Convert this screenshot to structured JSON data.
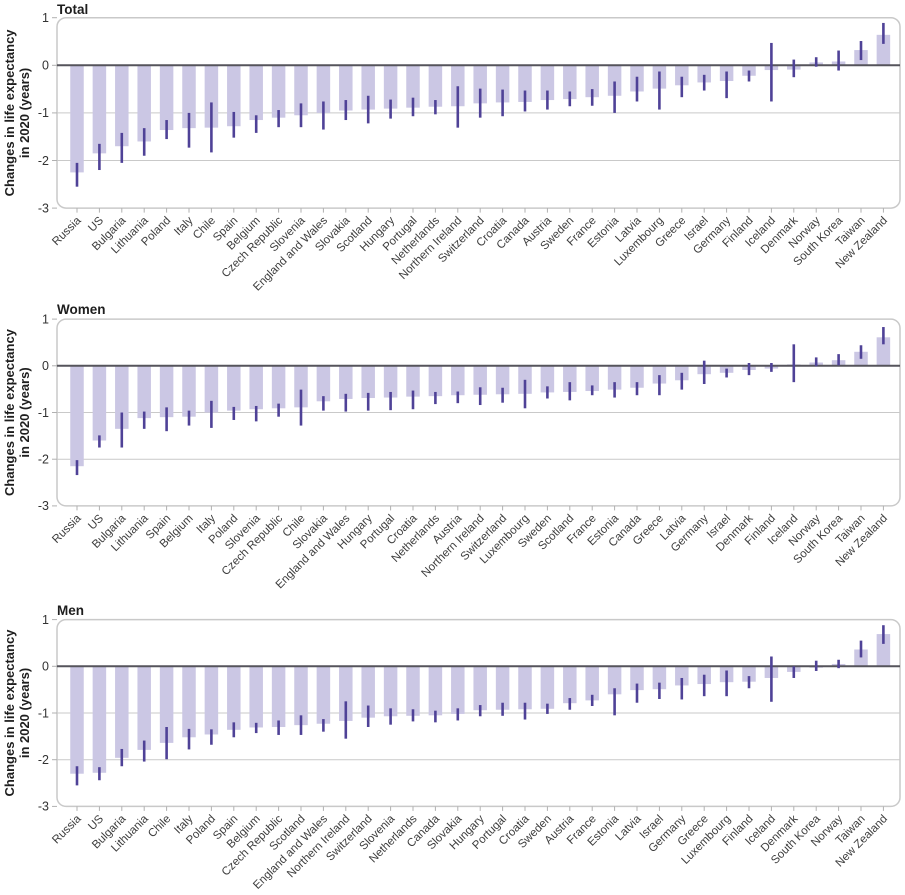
{
  "figure": {
    "y_axis_label_lines": [
      "Changes in life expectancy",
      "in 2020 (years)"
    ]
  },
  "colors": {
    "background": "#ffffff",
    "bar_fill": "#cbc7e4",
    "ci_stroke": "#4f4297",
    "gridline": "#c9c9c9",
    "zero_line": "#55545b",
    "panel_border": "#c9c9c9",
    "tick_mark": "#b0b0b0",
    "title_text": "#1e1e1e",
    "axis_text": "#333333",
    "label_text": "#3d3d3d"
  },
  "chart_data": [
    {
      "id": "total",
      "type": "bar",
      "title": "Total",
      "ylabel": "Changes in life expectancy in 2020 (years)",
      "yticks": [
        1,
        0,
        -1,
        -2,
        -3
      ],
      "ylim": [
        -3,
        1
      ],
      "grid": true,
      "error_bars": true,
      "categories": [
        "Russia",
        "US",
        "Bulgaria",
        "Lithuania",
        "Poland",
        "Italy",
        "Chile",
        "Spain",
        "Belgium",
        "Czech Republic",
        "Slovenia",
        "England and Wales",
        "Slovakia",
        "Scotland",
        "Hungary",
        "Portugal",
        "Netherlands",
        "Northern Ireland",
        "Switzerland",
        "Croatia",
        "Canada",
        "Austria",
        "Sweden",
        "France",
        "Estonia",
        "Latvia",
        "Luxembourg",
        "Greece",
        "Israel",
        "Germany",
        "Finland",
        "Iceland",
        "Denmark",
        "Norway",
        "South Korea",
        "Taiwan",
        "New Zealand"
      ],
      "values": [
        -2.25,
        -1.85,
        -1.7,
        -1.6,
        -1.36,
        -1.32,
        -1.31,
        -1.28,
        -1.15,
        -1.1,
        -1.05,
        -1.0,
        -0.95,
        -0.93,
        -0.91,
        -0.89,
        -0.87,
        -0.86,
        -0.8,
        -0.78,
        -0.77,
        -0.73,
        -0.71,
        -0.67,
        -0.64,
        -0.55,
        -0.49,
        -0.42,
        -0.36,
        -0.33,
        -0.22,
        -0.1,
        -0.09,
        0.06,
        0.08,
        0.32,
        0.64
      ],
      "ci_low": [
        -2.55,
        -2.2,
        -2.05,
        -1.9,
        -1.55,
        -1.73,
        -1.83,
        -1.52,
        -1.42,
        -1.3,
        -1.3,
        -1.35,
        -1.15,
        -1.22,
        -1.12,
        -1.07,
        -1.03,
        -1.31,
        -1.1,
        -1.07,
        -0.97,
        -0.93,
        -0.86,
        -0.85,
        -1.0,
        -0.76,
        -0.93,
        -0.67,
        -0.53,
        -0.69,
        -0.34,
        -0.76,
        -0.25,
        -0.03,
        -0.11,
        0.11,
        0.45
      ],
      "ci_high": [
        -2.05,
        -1.65,
        -1.42,
        -1.32,
        -1.15,
        -1.0,
        -0.78,
        -0.98,
        -1.05,
        -0.94,
        -0.8,
        -0.76,
        -0.73,
        -0.64,
        -0.72,
        -0.68,
        -0.73,
        -0.44,
        -0.49,
        -0.51,
        -0.53,
        -0.53,
        -0.55,
        -0.5,
        -0.34,
        -0.24,
        -0.13,
        -0.24,
        -0.2,
        -0.13,
        -0.11,
        0.47,
        0.12,
        0.17,
        0.31,
        0.51,
        0.89
      ]
    },
    {
      "id": "women",
      "type": "bar",
      "title": "Women",
      "ylabel": "Changes in life expectancy in 2020 (years)",
      "yticks": [
        1,
        0,
        -1,
        -2,
        -3
      ],
      "ylim": [
        -3,
        1
      ],
      "grid": true,
      "error_bars": true,
      "categories": [
        "Russia",
        "US",
        "Bulgaria",
        "Lithuania",
        "Spain",
        "Belgium",
        "Italy",
        "Poland",
        "Slovenia",
        "Czech Republic",
        "Chile",
        "Slovakia",
        "England and Wales",
        "Hungary",
        "Portugal",
        "Croatia",
        "Netherlands",
        "Austria",
        "Northern Ireland",
        "Switzerland",
        "Luxembourg",
        "Sweden",
        "Scotland",
        "France",
        "Estonia",
        "Canada",
        "Greece",
        "Latvia",
        "Germany",
        "Israel",
        "Denmark",
        "Finland",
        "Iceland",
        "Norway",
        "South Korea",
        "Taiwan",
        "New Zealand"
      ],
      "values": [
        -2.15,
        -1.6,
        -1.35,
        -1.12,
        -1.1,
        -1.09,
        -1.0,
        -0.96,
        -0.93,
        -0.91,
        -0.89,
        -0.76,
        -0.71,
        -0.69,
        -0.68,
        -0.66,
        -0.65,
        -0.63,
        -0.62,
        -0.61,
        -0.6,
        -0.57,
        -0.56,
        -0.54,
        -0.51,
        -0.47,
        -0.38,
        -0.31,
        -0.18,
        -0.15,
        -0.09,
        -0.06,
        0.03,
        0.07,
        0.12,
        0.3,
        0.61
      ],
      "ci_low": [
        -2.34,
        -1.75,
        -1.75,
        -1.35,
        -1.4,
        -1.28,
        -1.33,
        -1.16,
        -1.19,
        -1.09,
        -1.28,
        -0.96,
        -0.98,
        -0.96,
        -0.95,
        -0.93,
        -0.82,
        -0.8,
        -0.84,
        -0.79,
        -0.91,
        -0.7,
        -0.74,
        -0.63,
        -0.68,
        -0.63,
        -0.63,
        -0.51,
        -0.39,
        -0.25,
        -0.2,
        -0.13,
        -0.35,
        -0.01,
        0.01,
        0.15,
        0.46
      ],
      "ci_high": [
        -2.02,
        -1.49,
        -1.0,
        -0.98,
        -0.89,
        -0.96,
        -0.75,
        -0.88,
        -0.86,
        -0.81,
        -0.51,
        -0.65,
        -0.6,
        -0.58,
        -0.56,
        -0.53,
        -0.56,
        -0.55,
        -0.46,
        -0.47,
        -0.3,
        -0.44,
        -0.35,
        -0.42,
        -0.35,
        -0.35,
        -0.2,
        -0.15,
        0.11,
        -0.06,
        0.06,
        0.06,
        0.46,
        0.18,
        0.25,
        0.44,
        0.83
      ]
    },
    {
      "id": "men",
      "type": "bar",
      "title": "Men",
      "ylabel": "Changes in life expectancy in 2020 (years)",
      "yticks": [
        1,
        0,
        -1,
        -2,
        -3
      ],
      "ylim": [
        -3,
        1
      ],
      "grid": true,
      "error_bars": true,
      "categories": [
        "Russia",
        "US",
        "Bulgaria",
        "Lithuania",
        "Chile",
        "Italy",
        "Poland",
        "Spain",
        "Belgium",
        "Czech Republic",
        "Scotland",
        "England and Wales",
        "Northern Ireland",
        "Switzerland",
        "Slovenia",
        "Netherlands",
        "Canada",
        "Slovakia",
        "Hungary",
        "Portugal",
        "Croatia",
        "Sweden",
        "Austria",
        "France",
        "Estonia",
        "Latvia",
        "Israel",
        "Germany",
        "Greece",
        "Luxembourg",
        "Finland",
        "Iceland",
        "Denmark",
        "South Korea",
        "Norway",
        "Taiwan",
        "New Zealand"
      ],
      "values": [
        -2.3,
        -2.28,
        -1.96,
        -1.79,
        -1.64,
        -1.52,
        -1.46,
        -1.36,
        -1.31,
        -1.3,
        -1.26,
        -1.23,
        -1.17,
        -1.1,
        -1.07,
        -1.06,
        -1.05,
        -1.02,
        -0.94,
        -0.93,
        -0.92,
        -0.91,
        -0.79,
        -0.73,
        -0.6,
        -0.51,
        -0.49,
        -0.41,
        -0.38,
        -0.34,
        -0.33,
        -0.25,
        -0.12,
        -0.03,
        0.05,
        0.36,
        0.69
      ],
      "ci_low": [
        -2.55,
        -2.44,
        -2.14,
        -2.04,
        -1.99,
        -1.78,
        -1.68,
        -1.52,
        -1.43,
        -1.47,
        -1.47,
        -1.4,
        -1.55,
        -1.3,
        -1.25,
        -1.18,
        -1.2,
        -1.16,
        -1.07,
        -1.06,
        -1.14,
        -1.02,
        -0.93,
        -0.85,
        -1.05,
        -0.78,
        -0.7,
        -0.71,
        -0.64,
        -0.64,
        -0.47,
        -0.76,
        -0.25,
        -0.1,
        -0.04,
        0.19,
        0.48
      ],
      "ci_high": [
        -2.14,
        -2.16,
        -1.77,
        -1.59,
        -1.3,
        -1.34,
        -1.35,
        -1.2,
        -1.21,
        -1.16,
        -1.05,
        -1.13,
        -0.75,
        -0.84,
        -0.9,
        -0.92,
        -0.95,
        -0.9,
        -0.83,
        -0.78,
        -0.78,
        -0.8,
        -0.68,
        -0.61,
        -0.47,
        -0.37,
        -0.35,
        -0.25,
        -0.18,
        -0.09,
        -0.21,
        0.21,
        0.0,
        0.12,
        0.14,
        0.55,
        0.88
      ]
    }
  ]
}
